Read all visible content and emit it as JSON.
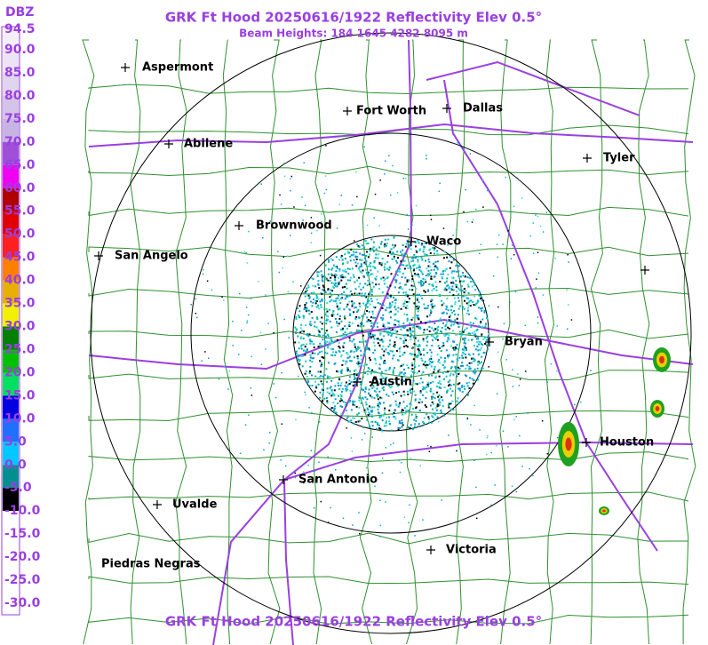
{
  "header": {
    "title": "GRK Ft Hood 20250616/1922 Reflectivity Elev 0.5°",
    "subtitle": "Beam Heights: 184 1645 4282 8095 m"
  },
  "legend": {
    "unit": "DBZ",
    "labels": [
      "94.5",
      "90.0",
      "85.0",
      "80.0",
      "75.0",
      "70.0",
      "65.0",
      "60.0",
      "55.0",
      "50.0",
      "45.0",
      "40.0",
      "35.0",
      "30.0",
      "25.0",
      "20.0",
      "15.0",
      "10.0",
      "5.0",
      "0.0",
      "-5.0",
      "-10.0",
      "-15.0",
      "-20.0",
      "-25.0",
      "-30.0"
    ]
  },
  "cities": [
    "Aspermont",
    "Abilene",
    "Fort Worth",
    "Dallas",
    "Tyler",
    "Brownwood",
    "Waco",
    "San Angelo",
    "Bryan",
    "Austin",
    "Houston",
    "San Antonio",
    "Uvalde",
    "Victoria",
    "Piedras Negras"
  ]
}
